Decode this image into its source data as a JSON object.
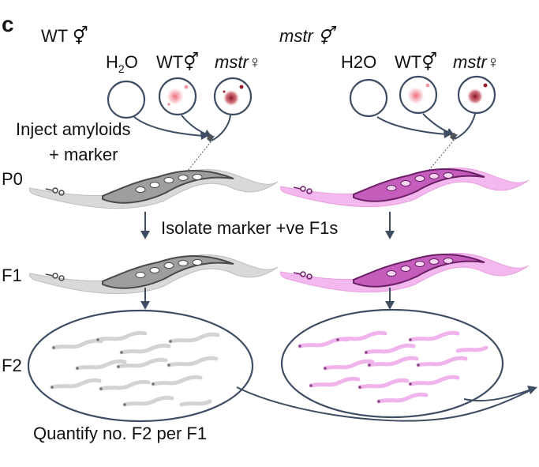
{
  "panel_letter": "c",
  "left": {
    "header": "WT ⚥",
    "sample_labels": {
      "water_main": "H",
      "water_sub": "2",
      "water_end": "O",
      "wt": "WT⚥",
      "mstr": "mstr♀"
    },
    "inject": {
      "line1": "Inject amyloids",
      "line2": "+ marker"
    }
  },
  "right": {
    "header": "mstr ⚥",
    "sample_labels": {
      "water": "H2O",
      "wt": "WT⚥",
      "mstr": "mstr♀"
    }
  },
  "generations": {
    "p0": "P0",
    "f1": "F1",
    "f2": "F2"
  },
  "isolate_text": "Isolate marker +ve F1s",
  "quantify_text": "Quantify no. F2 per F1",
  "colors": {
    "arrow": "#3f4d63",
    "wt_worm": "#d9d9d9",
    "wt_outline": "#4a4a4a",
    "mstr_worm": "#f3b8ee",
    "mstr_outline": "#6b1f66",
    "wt_aggregate": "#e8566a",
    "mstr_aggregate": "#9a2030"
  }
}
